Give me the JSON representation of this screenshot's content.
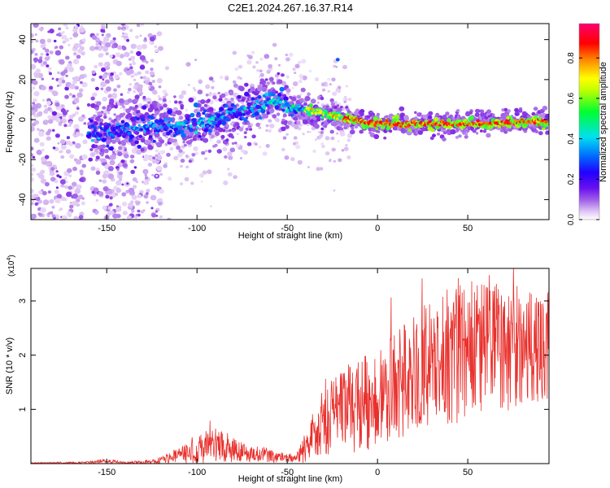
{
  "title": "C2E1.2024.267.16.37.R14",
  "chart_data": [
    {
      "type": "heatmap",
      "xlabel": "Height of straight line (km)",
      "ylabel": "Frequency (Hz)",
      "xlim": [
        -192,
        95
      ],
      "ylim": [
        -50,
        48
      ],
      "xticks": [
        -150,
        -100,
        -50,
        0,
        50
      ],
      "yticks": [
        -40,
        -20,
        0,
        20,
        40
      ],
      "colorbar": {
        "label": "Normalized spectral amplitude",
        "range": [
          0,
          0.97
        ],
        "ticks": [
          0.0,
          0.2,
          0.4,
          0.6,
          0.8
        ]
      },
      "ridge": {
        "x": [
          -158,
          -150,
          -135,
          -120,
          -110,
          -100,
          -90,
          -80,
          -70,
          -60,
          -55,
          -50,
          -40,
          -30,
          -20,
          -10,
          0,
          20,
          40,
          60,
          80,
          95
        ],
        "y": [
          -6,
          -7,
          -4,
          -3,
          -3,
          -2,
          0,
          3,
          6,
          9,
          10,
          6,
          5,
          3,
          1,
          -1,
          -2,
          -2,
          -2,
          -2,
          -1,
          -1
        ]
      }
    },
    {
      "type": "line",
      "xlabel": "Height of straight line (km)",
      "ylabel": "SNR (10 * v/v)",
      "y_multiplier": "(x10^4)",
      "y_multiplier_base": "(x10",
      "y_multiplier_exp": "4",
      "y_multiplier_close": ")",
      "xlim": [
        -192,
        95
      ],
      "ylim": [
        0,
        3.6
      ],
      "xticks": [
        -150,
        -100,
        -50,
        0,
        50
      ],
      "yticks": [
        1,
        2,
        3
      ],
      "line_color": "#e8302c",
      "envelope": {
        "x": [
          -192,
          -160,
          -152,
          -140,
          -125,
          -115,
          -105,
          -95,
          -85,
          -80,
          -75,
          -65,
          -55,
          -45,
          -40,
          -35,
          -30,
          -25,
          -20,
          -15,
          -10,
          -5,
          0,
          5,
          10,
          20,
          30,
          40,
          50,
          60,
          70,
          80,
          95
        ],
        "mean": [
          0.01,
          0.02,
          0.05,
          0.02,
          0.03,
          0.1,
          0.2,
          0.3,
          0.35,
          0.3,
          0.2,
          0.18,
          0.12,
          0.1,
          0.3,
          0.6,
          0.75,
          0.85,
          0.95,
          1.0,
          1.1,
          1.15,
          1.2,
          1.35,
          1.45,
          1.65,
          1.85,
          2.0,
          2.1,
          2.1,
          2.15,
          2.15,
          2.2
        ],
        "amp": [
          0.01,
          0.02,
          0.04,
          0.02,
          0.04,
          0.12,
          0.22,
          0.3,
          0.32,
          0.28,
          0.18,
          0.15,
          0.1,
          0.08,
          0.3,
          0.5,
          0.6,
          0.7,
          0.8,
          0.85,
          0.85,
          0.9,
          0.9,
          0.95,
          1.0,
          1.1,
          1.2,
          1.3,
          1.3,
          1.25,
          1.2,
          1.1,
          1.0
        ]
      }
    }
  ],
  "colors": {
    "colormap": [
      "#ffffff",
      "#e3ccf5",
      "#b07be8",
      "#7b1fe6",
      "#2d00ff",
      "#0070ff",
      "#00e0f0",
      "#00ff40",
      "#c8ff00",
      "#ffff00",
      "#ff8800",
      "#ff0000",
      "#ff0080"
    ]
  }
}
